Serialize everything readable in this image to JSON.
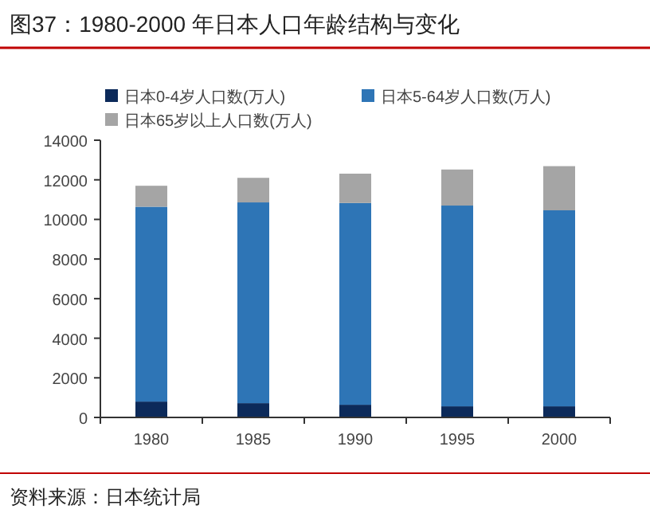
{
  "chart_data": {
    "type": "bar",
    "title": "图37：1980-2000 年日本人口年龄结构与变化",
    "stacked": true,
    "legend": "top",
    "grid": false,
    "categories": [
      "1980",
      "1985",
      "1990",
      "1995",
      "2000"
    ],
    "series": [
      {
        "name": "日本0-4岁人口数(万人)",
        "color": "#0c2a5a",
        "values": [
          800,
          720,
          640,
          560,
          560
        ]
      },
      {
        "name": "日本5-64岁人口数(万人)",
        "color": "#2e75b6",
        "values": [
          9840,
          10140,
          10190,
          10140,
          9900
        ]
      },
      {
        "name": "日本65岁以上人口数(万人)",
        "color": "#a5a5a5",
        "values": [
          1060,
          1240,
          1480,
          1820,
          2230
        ]
      }
    ],
    "ylim": [
      0,
      14000
    ],
    "yticks": [
      0,
      2000,
      4000,
      6000,
      8000,
      10000,
      12000,
      14000
    ],
    "annotations": [
      "资料来源：日本统计局"
    ]
  }
}
